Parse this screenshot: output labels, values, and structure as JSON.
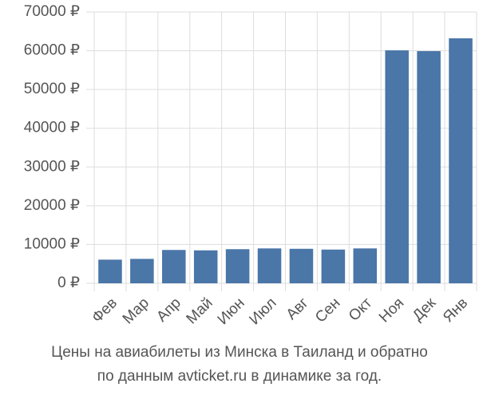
{
  "chart_data": {
    "type": "bar",
    "title": "Цены на авиабилеты из Минска в Таиланд и обратно",
    "subtitle": "по данным avticket.ru в динамике за год.",
    "categories": [
      "Фев",
      "Мар",
      "Апр",
      "Май",
      "Июн",
      "Июл",
      "Авг",
      "Сен",
      "Окт",
      "Ноя",
      "Дек",
      "Янв"
    ],
    "values": [
      6100,
      6300,
      8600,
      8500,
      8800,
      9000,
      8900,
      8700,
      9000,
      60100,
      59900,
      63200
    ],
    "color": "#4a76a8",
    "ylim": [
      0,
      70000
    ],
    "yticks": [
      {
        "value": 0,
        "label": "0 ₽"
      },
      {
        "value": 10000,
        "label": "10000 ₽"
      },
      {
        "value": 20000,
        "label": "20000 ₽"
      },
      {
        "value": 30000,
        "label": "30000 ₽"
      },
      {
        "value": 40000,
        "label": "40000 ₽"
      },
      {
        "value": 50000,
        "label": "50000 ₽"
      },
      {
        "value": 60000,
        "label": "60000 ₽"
      },
      {
        "value": 70000,
        "label": "70000 ₽"
      }
    ],
    "grid": true
  }
}
